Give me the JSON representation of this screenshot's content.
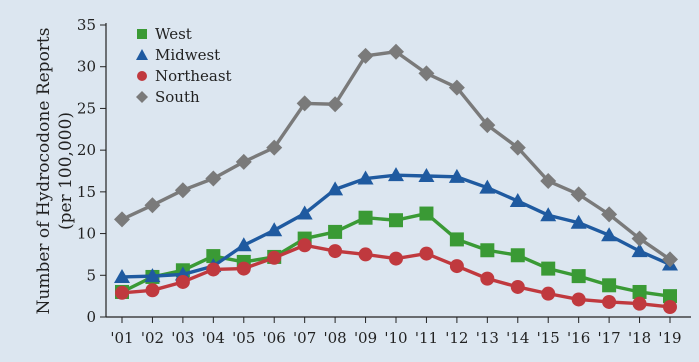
{
  "chart_data": {
    "type": "line",
    "title": "",
    "xlabel": "",
    "ylabel": "Number of Hydrocodone Reports (per 100,000)",
    "ylabel_lines": [
      "Number of Hydrocodone Reports",
      "(per 100,000)"
    ],
    "categories": [
      "'01",
      "'02",
      "'03",
      "'04",
      "'05",
      "'06",
      "'07",
      "'08",
      "'09",
      "'10",
      "'11",
      "'12",
      "'13",
      "'14",
      "'15",
      "'16",
      "'17",
      "'18",
      "'19"
    ],
    "ylim": [
      0,
      35
    ],
    "yticks": [
      0,
      5,
      10,
      15,
      20,
      25,
      30,
      35
    ],
    "grid": false,
    "legend_position": "top-left",
    "series": [
      {
        "name": "West",
        "color": "#3a9a35",
        "marker": "square",
        "values": [
          3.0,
          4.8,
          5.6,
          7.3,
          6.6,
          7.2,
          9.4,
          10.2,
          11.9,
          11.6,
          12.4,
          9.3,
          8.0,
          7.4,
          5.8,
          4.9,
          3.8,
          3.0,
          2.5
        ]
      },
      {
        "name": "Midwest",
        "color": "#1f5aa0",
        "marker": "triangle",
        "values": [
          4.8,
          4.9,
          5.1,
          6.1,
          8.6,
          10.4,
          12.4,
          15.3,
          16.6,
          17.0,
          16.9,
          16.8,
          15.5,
          13.9,
          12.2,
          11.3,
          9.8,
          7.9,
          6.3
        ]
      },
      {
        "name": "Northeast",
        "color": "#c0393e",
        "marker": "circle",
        "values": [
          2.9,
          3.2,
          4.2,
          5.7,
          5.8,
          7.1,
          8.6,
          7.9,
          7.5,
          7.0,
          7.6,
          6.1,
          4.6,
          3.6,
          2.8,
          2.1,
          1.8,
          1.6,
          1.2
        ]
      },
      {
        "name": "South",
        "color": "#7a7a7a",
        "marker": "diamond",
        "values": [
          11.7,
          13.4,
          15.2,
          16.6,
          18.6,
          20.3,
          25.6,
          25.5,
          31.3,
          31.8,
          29.2,
          27.5,
          23.0,
          20.3,
          16.3,
          14.7,
          12.3,
          9.4,
          6.9
        ]
      }
    ]
  }
}
